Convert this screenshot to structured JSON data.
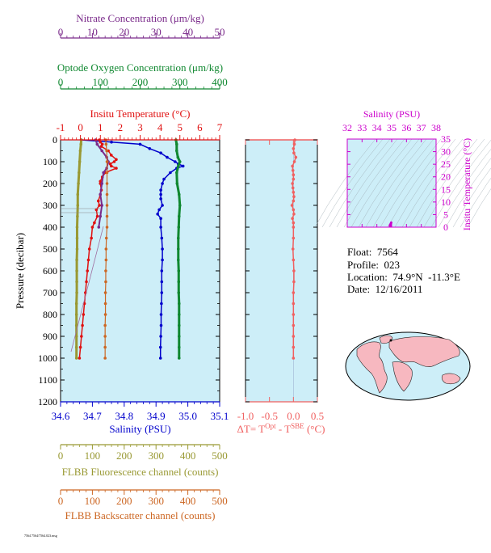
{
  "meta": {
    "float_label": "Float:",
    "float_value": "7564",
    "profile_label": "Profile:",
    "profile_value": "023",
    "location_label": "Location:",
    "location_value": "74.9°N  -11.3°E",
    "date_label": "Date:",
    "date_value": "12/16/2011",
    "footer": "7564 7564/7564.023.msg"
  },
  "colors": {
    "salinity": "#0000cc",
    "temperature": "#e01010",
    "oxygen": "#108830",
    "nitrate": "#7a2a8a",
    "fluorescence": "#999933",
    "backscatter": "#cc6622",
    "delta": "#f06060",
    "ts_axis": "#cc00cc",
    "panel_bg": "#cdeef8",
    "axis": "#806010"
  },
  "chart_data": [
    {
      "id": "profile-main",
      "type": "line",
      "ylabel": "Pressure (decibar)",
      "y_ticks": [
        0,
        100,
        200,
        300,
        400,
        500,
        600,
        700,
        800,
        900,
        1000,
        1100,
        1200
      ],
      "ylim": [
        1200,
        0
      ],
      "axes": {
        "nitrate": {
          "label": "Nitrate Concentration (μm/kg)",
          "ticks": [
            0,
            10,
            20,
            30,
            40,
            50
          ],
          "lim": [
            0,
            50
          ]
        },
        "oxygen": {
          "label": "Optode Oxygen Concentration (μm/kg)",
          "ticks": [
            0,
            100,
            200,
            300,
            400
          ],
          "lim": [
            0,
            400
          ]
        },
        "temperature": {
          "label": "Insitu Temperature (°C)",
          "ticks": [
            -1,
            0,
            1,
            2,
            3,
            4,
            5,
            6,
            7
          ],
          "lim": [
            -1,
            7
          ]
        },
        "salinity": {
          "label": "Salinity (PSU)",
          "ticks": [
            "34.6",
            "34.7",
            "34.8",
            "34.9",
            "35.0",
            "35.1"
          ],
          "lim": [
            34.6,
            35.1
          ]
        },
        "fluorescence": {
          "label": "FLBB Fluorescence channel (counts)",
          "ticks": [
            0,
            100,
            200,
            300,
            400,
            500
          ],
          "lim": [
            0,
            500
          ]
        },
        "backscatter": {
          "label": "FLBB Backscatter channel (counts)",
          "ticks": [
            0,
            100,
            200,
            300,
            400,
            500
          ],
          "lim": [
            0,
            500
          ]
        }
      },
      "series": [
        {
          "key": "salinity",
          "axis": "salinity",
          "pressure": [
            0,
            10,
            20,
            40,
            60,
            80,
            100,
            110,
            120,
            130,
            150,
            180,
            200,
            230,
            250,
            270,
            300,
            320,
            340,
            360,
            400,
            450,
            500,
            550,
            600,
            650,
            700,
            750,
            800,
            850,
            900,
            950,
            1000
          ],
          "values": [
            34.665,
            34.76,
            34.85,
            34.88,
            34.915,
            34.935,
            34.96,
            34.97,
            34.985,
            34.965,
            34.945,
            34.925,
            34.92,
            34.915,
            34.915,
            34.915,
            34.92,
            34.91,
            34.905,
            34.915,
            34.915,
            34.918,
            34.92,
            34.92,
            34.918,
            34.918,
            34.918,
            34.917,
            34.916,
            34.916,
            34.915,
            34.914,
            34.914
          ]
        },
        {
          "key": "temperature",
          "axis": "temperature",
          "pressure": [
            0,
            10,
            20,
            30,
            50,
            70,
            90,
            100,
            110,
            120,
            130,
            150,
            170,
            190,
            200,
            230,
            250,
            280,
            300,
            320,
            350,
            380,
            400,
            450,
            500,
            550,
            600,
            650,
            700,
            750,
            800,
            850,
            900,
            950,
            1000
          ],
          "values": [
            0.95,
            1.0,
            1.1,
            1.05,
            1.4,
            1.55,
            1.8,
            1.7,
            1.5,
            1.55,
            1.8,
            1.25,
            1.1,
            1.0,
            1.0,
            1.05,
            1.0,
            0.9,
            0.95,
            0.8,
            0.85,
            0.7,
            0.6,
            0.55,
            0.45,
            0.4,
            0.35,
            0.3,
            0.25,
            0.2,
            0.15,
            0.1,
            0.05,
            0.0,
            -0.05
          ]
        },
        {
          "key": "oxygen",
          "axis": "oxygen",
          "pressure": [
            0,
            20,
            50,
            80,
            100,
            120,
            150,
            200,
            250,
            300,
            350,
            400,
            450,
            500,
            550,
            600,
            650,
            700,
            750,
            800,
            850,
            900,
            950,
            1000
          ],
          "values": [
            290,
            292,
            292,
            295,
            300,
            296,
            292,
            293,
            298,
            300,
            298,
            297,
            296,
            296,
            296,
            297,
            297,
            297,
            298,
            298,
            298,
            298,
            298,
            298
          ]
        },
        {
          "key": "nitrate",
          "axis": "nitrate",
          "pressure": [
            0,
            20,
            50,
            80,
            100,
            130,
            150,
            200,
            250,
            300,
            350,
            400
          ],
          "values": [
            11,
            11.5,
            13,
            14.5,
            15,
            14.5,
            13.5,
            13,
            12.5,
            13,
            12.5,
            12
          ]
        },
        {
          "key": "fluorescence",
          "axis": "fluorescence",
          "pressure": [
            0,
            20,
            50,
            100,
            150,
            200,
            250,
            300,
            350,
            400,
            450,
            500,
            550,
            600,
            650,
            700,
            750,
            800,
            850,
            900,
            950,
            1000
          ],
          "values": [
            65,
            64,
            62,
            60,
            58,
            56,
            54,
            54,
            53,
            52,
            52,
            52,
            51,
            51,
            51,
            51,
            50,
            50,
            50,
            50,
            50,
            50
          ]
        },
        {
          "key": "backscatter",
          "axis": "backscatter",
          "pressure": [
            0,
            20,
            50,
            100,
            150,
            200,
            250,
            300,
            350,
            400,
            450,
            500,
            550,
            600,
            650,
            700,
            750,
            800,
            850,
            900,
            950,
            1000
          ],
          "values": [
            142,
            143,
            145,
            146,
            146,
            146,
            146,
            146,
            146,
            146,
            144,
            143,
            143,
            142,
            142,
            141,
            141,
            141,
            140,
            140,
            140,
            140
          ]
        }
      ],
      "legend": "none",
      "grid": false
    },
    {
      "id": "delta-temperature",
      "type": "line",
      "xlabel": "ΔT= T^Opt - T^SBE (°C)",
      "x_ticks": [
        "-1.0",
        "-0.5",
        "0.0",
        "0.5"
      ],
      "xlim": [
        -1.0,
        0.5
      ],
      "ylim": [
        1200,
        0
      ],
      "pressure": [
        0,
        20,
        40,
        60,
        80,
        100,
        120,
        140,
        160,
        180,
        200,
        220,
        240,
        260,
        280,
        300,
        320,
        340,
        360,
        380,
        400,
        450,
        500,
        550,
        600,
        650,
        700,
        750,
        800,
        850,
        900,
        950,
        1000
      ],
      "values": [
        0.03,
        0.02,
        0.0,
        0.01,
        0.05,
        0.02,
        -0.02,
        -0.01,
        0.0,
        0.0,
        -0.02,
        -0.01,
        0.0,
        0.01,
        0.0,
        -0.03,
        0.0,
        0.01,
        -0.02,
        0.0,
        0.0,
        0.0,
        -0.01,
        0.0,
        0.01,
        0.01,
        0.0,
        0.0,
        0.0,
        0.0,
        0.0,
        0.0,
        0.0
      ],
      "grid": false
    },
    {
      "id": "ts-diagram",
      "type": "scatter",
      "xlabel": "Salinity (PSU)",
      "ylabel": "Insitu Temperature (°C)",
      "x_ticks": [
        32,
        33,
        34,
        35,
        36,
        37,
        38
      ],
      "y_ticks": [
        0,
        5,
        10,
        15,
        20,
        25,
        30,
        35
      ],
      "xlim": [
        32,
        38
      ],
      "ylim": [
        0,
        35
      ],
      "points": [
        {
          "x": 34.9,
          "y": 0.5
        },
        {
          "x": 34.92,
          "y": 1.0
        },
        {
          "x": 34.95,
          "y": 1.5
        },
        {
          "x": 34.97,
          "y": 1.8
        },
        {
          "x": 34.9,
          "y": 1.0
        },
        {
          "x": 34.88,
          "y": 0.6
        }
      ]
    }
  ]
}
